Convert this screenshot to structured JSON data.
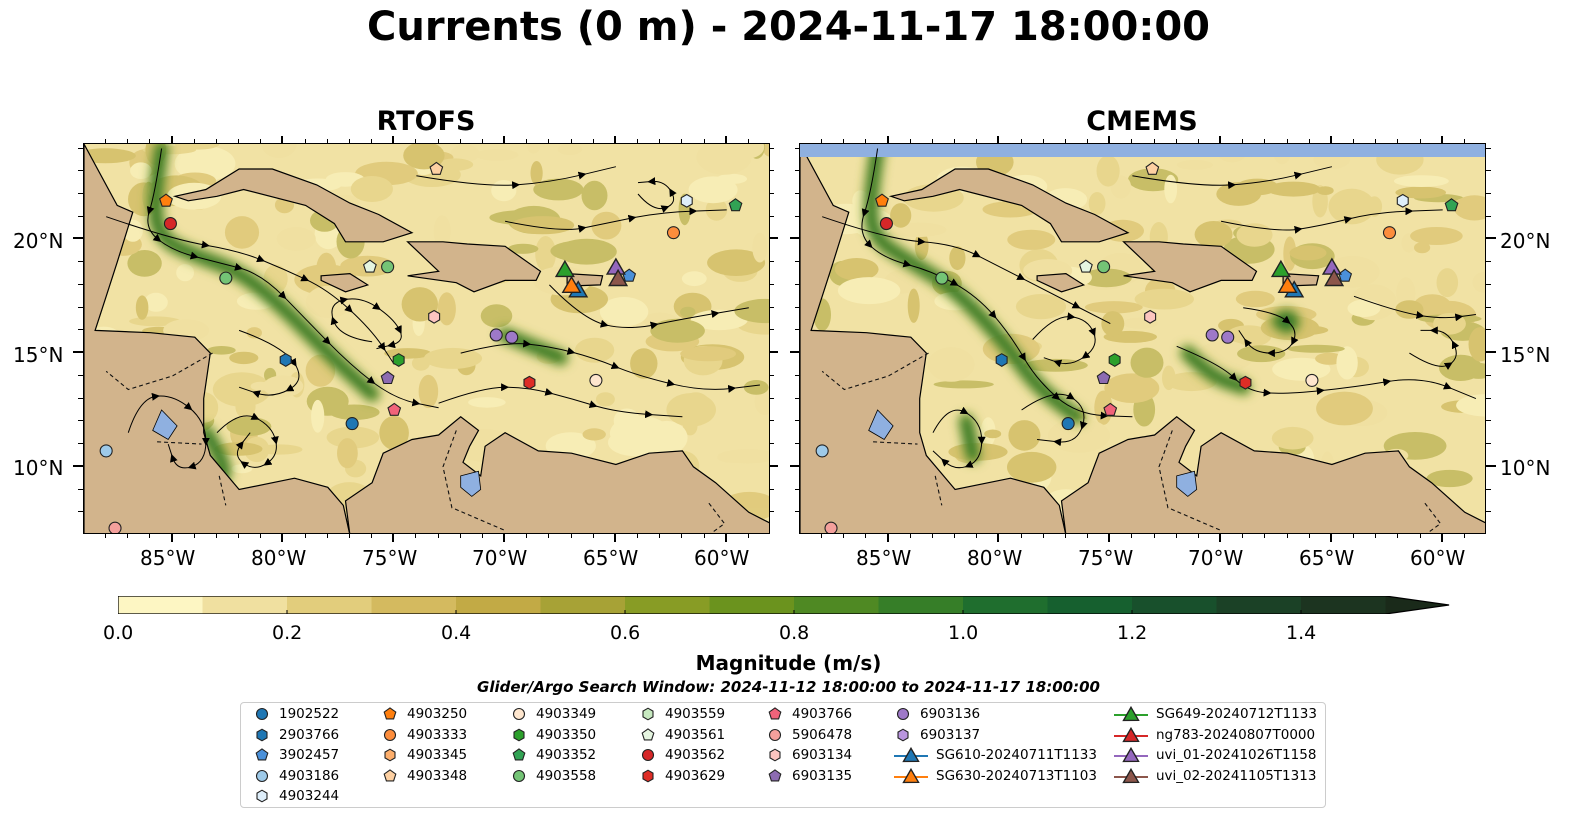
{
  "title": "Currents (0 m) - 2024-11-17 18:00:00",
  "panels": [
    {
      "title": "RTOFS"
    },
    {
      "title": "CMEMS"
    }
  ],
  "axes": {
    "lon_ticks": [
      "85°W",
      "80°W",
      "75°W",
      "70°W",
      "65°W",
      "60°W"
    ],
    "lat_ticks": [
      "20°N",
      "15°N",
      "10°N"
    ]
  },
  "colorbar": {
    "label": "Magnitude (m/s)",
    "ticks": [
      "0.0",
      "0.2",
      "0.4",
      "0.6",
      "0.8",
      "1.0",
      "1.2",
      "1.4"
    ],
    "colors": [
      "#fdf6c3",
      "#f0e0a0",
      "#e2cd7c",
      "#d4ba5f",
      "#c2aa45",
      "#a7a236",
      "#889c25",
      "#6b931e",
      "#4f8923",
      "#367e28",
      "#1f6e2e",
      "#16602f",
      "#18502c",
      "#1b4126",
      "#1c3420",
      "#1a2a1a"
    ]
  },
  "subtitle": "Glider/Argo Search Window: 2024-11-12 18:00:00 to 2024-11-17 18:00:00",
  "legend": [
    {
      "label": "1902522",
      "marker": "circle",
      "color": "#1f77b4"
    },
    {
      "label": "2903766",
      "marker": "hexagon",
      "color": "#1f77b4"
    },
    {
      "label": "3902457",
      "marker": "pentagon",
      "color": "#4a90d9"
    },
    {
      "label": "4903186",
      "marker": "circle",
      "color": "#9ecae9"
    },
    {
      "label": "4903244",
      "marker": "hexagon",
      "color": "#deeefa"
    },
    {
      "label": "4903250",
      "marker": "pentagon",
      "color": "#ff7f0e"
    },
    {
      "label": "4903333",
      "marker": "circle",
      "color": "#fd8d3c"
    },
    {
      "label": "4903345",
      "marker": "hexagon",
      "color": "#fdae6b"
    },
    {
      "label": "4903348",
      "marker": "pentagon",
      "color": "#fdd0a2"
    },
    {
      "label": "4903349",
      "marker": "circle",
      "color": "#fee6ce"
    },
    {
      "label": "4903350",
      "marker": "hexagon",
      "color": "#2ca02c"
    },
    {
      "label": "4903352",
      "marker": "pentagon",
      "color": "#31a354"
    },
    {
      "label": "4903558",
      "marker": "circle",
      "color": "#74c476"
    },
    {
      "label": "4903559",
      "marker": "hexagon",
      "color": "#c7e9c0"
    },
    {
      "label": "4903561",
      "marker": "pentagon",
      "color": "#e5f5e0"
    },
    {
      "label": "4903562",
      "marker": "circle",
      "color": "#d62728"
    },
    {
      "label": "4903629",
      "marker": "hexagon",
      "color": "#de2d26"
    },
    {
      "label": "4903766",
      "marker": "pentagon",
      "color": "#f0637a"
    },
    {
      "label": "5906478",
      "marker": "circle",
      "color": "#f4a09c"
    },
    {
      "label": "6903134",
      "marker": "hexagon",
      "color": "#fcc5c0"
    },
    {
      "label": "6903135",
      "marker": "pentagon",
      "color": "#8c6bb1"
    },
    {
      "label": "6903136",
      "marker": "circle",
      "color": "#9e79c8"
    },
    {
      "label": "6903137",
      "marker": "hexagon",
      "color": "#b995de"
    },
    {
      "label": "SG610-20240711T1133",
      "marker": "triangle-line",
      "color": "#1f77b4"
    },
    {
      "label": "SG630-20240713T1103",
      "marker": "triangle-line",
      "color": "#ff7f0e"
    },
    {
      "label": "SG649-20240712T1133",
      "marker": "triangle-line",
      "color": "#2ca02c"
    },
    {
      "label": "ng783-20240807T0000",
      "marker": "triangle-line",
      "color": "#d62728"
    },
    {
      "label": "uvi_01-20241026T1158",
      "marker": "triangle-line",
      "color": "#9467bd"
    },
    {
      "label": "uvi_02-20241105T1313",
      "marker": "triangle-line",
      "color": "#8c564b"
    }
  ],
  "map_data": {
    "lon_range": [
      -89,
      -58
    ],
    "lat_range": [
      7,
      24.2
    ],
    "land_color": "#d2b48c",
    "lake_color": "#8fb0e0",
    "floats_rtofs": [
      {
        "id": "4903250",
        "lon": -85.3,
        "lat": 21.7
      },
      {
        "id": "4903562",
        "lon": -85.1,
        "lat": 20.7
      },
      {
        "id": "4903348",
        "lon": -73.1,
        "lat": 23.1
      },
      {
        "id": "4903244",
        "lon": -61.8,
        "lat": 21.7
      },
      {
        "id": "4903352",
        "lon": -59.6,
        "lat": 21.5
      },
      {
        "id": "4903333",
        "lon": -62.4,
        "lat": 20.3
      },
      {
        "id": "4903558",
        "lon": -82.6,
        "lat": 18.3
      },
      {
        "id": "4903561",
        "lon": -76.1,
        "lat": 18.8
      },
      {
        "id": "4903558",
        "lon": -75.3,
        "lat": 18.8
      },
      {
        "id": "6903134",
        "lon": -73.2,
        "lat": 16.6
      },
      {
        "id": "6903136",
        "lon": -70.4,
        "lat": 15.8
      },
      {
        "id": "6903136",
        "lon": -69.7,
        "lat": 15.7
      },
      {
        "id": "2903766",
        "lon": -79.9,
        "lat": 14.7
      },
      {
        "id": "4903350",
        "lon": -74.8,
        "lat": 14.7
      },
      {
        "id": "6903135",
        "lon": -75.3,
        "lat": 13.9
      },
      {
        "id": "4903629",
        "lon": -68.9,
        "lat": 13.7
      },
      {
        "id": "4903349",
        "lon": -65.9,
        "lat": 13.8
      },
      {
        "id": "4903766",
        "lon": -75.0,
        "lat": 12.5
      },
      {
        "id": "1902522",
        "lon": -76.9,
        "lat": 11.9
      },
      {
        "id": "4903186",
        "lon": -88.0,
        "lat": 10.7
      },
      {
        "id": "5906478",
        "lon": -87.6,
        "lat": 7.3
      },
      {
        "id": "3902457",
        "lon": -64.4,
        "lat": 18.4
      }
    ],
    "floats_cmems": [
      {
        "id": "4903250",
        "lon": -85.3,
        "lat": 21.7
      },
      {
        "id": "4903562",
        "lon": -85.1,
        "lat": 20.7
      },
      {
        "id": "4903348",
        "lon": -73.1,
        "lat": 23.1
      },
      {
        "id": "4903244",
        "lon": -61.8,
        "lat": 21.7
      },
      {
        "id": "4903352",
        "lon": -59.6,
        "lat": 21.5
      },
      {
        "id": "4903333",
        "lon": -62.4,
        "lat": 20.3
      },
      {
        "id": "4903558",
        "lon": -82.6,
        "lat": 18.3
      },
      {
        "id": "4903561",
        "lon": -76.1,
        "lat": 18.8
      },
      {
        "id": "4903558",
        "lon": -75.3,
        "lat": 18.8
      },
      {
        "id": "6903134",
        "lon": -73.2,
        "lat": 16.6
      },
      {
        "id": "6903136",
        "lon": -70.4,
        "lat": 15.8
      },
      {
        "id": "6903136",
        "lon": -69.7,
        "lat": 15.7
      },
      {
        "id": "2903766",
        "lon": -79.9,
        "lat": 14.7
      },
      {
        "id": "4903350",
        "lon": -74.8,
        "lat": 14.7
      },
      {
        "id": "6903135",
        "lon": -75.3,
        "lat": 13.9
      },
      {
        "id": "4903629",
        "lon": -68.9,
        "lat": 13.7
      },
      {
        "id": "4903349",
        "lon": -65.9,
        "lat": 13.8
      },
      {
        "id": "4903766",
        "lon": -75.0,
        "lat": 12.5
      },
      {
        "id": "1902522",
        "lon": -76.9,
        "lat": 11.9
      },
      {
        "id": "4903186",
        "lon": -88.0,
        "lat": 10.7
      },
      {
        "id": "5906478",
        "lon": -87.6,
        "lat": 7.3
      },
      {
        "id": "3902457",
        "lon": -64.4,
        "lat": 18.4
      }
    ],
    "gliders": [
      {
        "id": "SG649-20240712T1133",
        "lon": -67.3,
        "lat": 18.6
      },
      {
        "id": "SG610-20240711T1133",
        "lon": -66.7,
        "lat": 17.7
      },
      {
        "id": "SG630-20240713T1103",
        "lon": -67.0,
        "lat": 17.9
      },
      {
        "id": "uvi_01-20241026T1158",
        "lon": -65.0,
        "lat": 18.7
      },
      {
        "id": "uvi_02-20241105T1313",
        "lon": -64.9,
        "lat": 18.2
      }
    ]
  }
}
